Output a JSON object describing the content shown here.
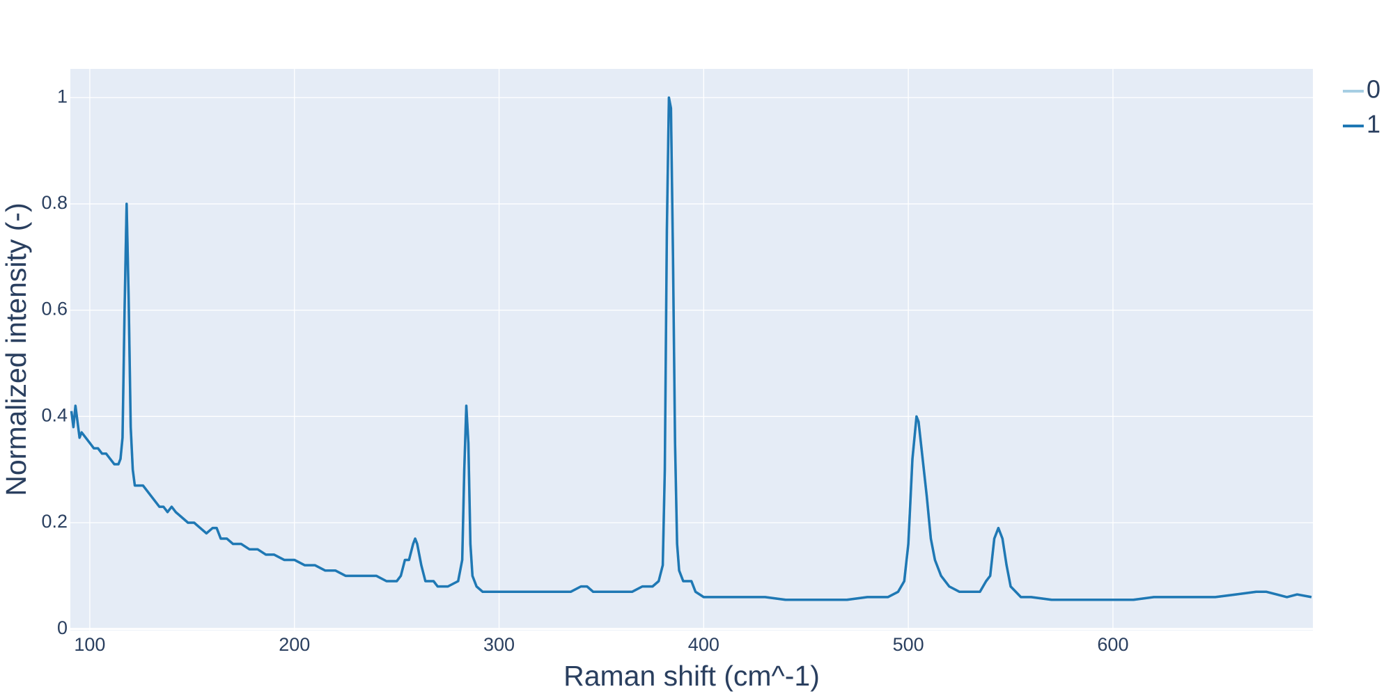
{
  "chart_data": {
    "type": "line",
    "x_label": "Raman shift (cm^-1)",
    "y_label": "Normalized intensity (-)",
    "x": [
      91,
      92,
      93,
      94,
      95,
      96,
      98,
      100,
      102,
      104,
      106,
      108,
      110,
      112,
      114,
      115,
      116,
      117,
      118,
      119,
      120,
      121,
      122,
      124,
      126,
      128,
      130,
      132,
      134,
      136,
      138,
      140,
      142,
      145,
      148,
      151,
      154,
      157,
      160,
      162,
      164,
      167,
      170,
      174,
      178,
      182,
      186,
      190,
      195,
      200,
      205,
      210,
      215,
      220,
      225,
      230,
      235,
      240,
      245,
      250,
      252,
      254,
      256,
      258,
      259,
      260,
      262,
      264,
      266,
      268,
      270,
      275,
      280,
      282,
      283,
      284,
      285,
      286,
      287,
      289,
      292,
      296,
      300,
      305,
      310,
      315,
      320,
      325,
      330,
      335,
      340,
      343,
      346,
      350,
      355,
      360,
      365,
      370,
      375,
      378,
      380,
      381,
      382,
      383,
      384,
      385,
      386,
      387,
      388,
      390,
      392,
      394,
      396,
      400,
      410,
      420,
      430,
      440,
      450,
      460,
      470,
      480,
      490,
      495,
      498,
      500,
      502,
      504,
      505,
      507,
      509,
      511,
      513,
      516,
      520,
      525,
      530,
      535,
      538,
      540,
      542,
      544,
      546,
      548,
      550,
      555,
      560,
      570,
      580,
      590,
      600,
      610,
      620,
      630,
      640,
      650,
      660,
      670,
      675,
      680,
      685,
      690,
      697
    ],
    "series": [
      {
        "name": "0",
        "color": "#a6cee3",
        "values": [
          0.41,
          0.38,
          0.42,
          0.39,
          0.36,
          0.37,
          0.36,
          0.35,
          0.34,
          0.34,
          0.33,
          0.33,
          0.32,
          0.31,
          0.31,
          0.32,
          0.36,
          0.6,
          0.8,
          0.62,
          0.38,
          0.3,
          0.27,
          0.27,
          0.27,
          0.26,
          0.25,
          0.24,
          0.23,
          0.23,
          0.22,
          0.23,
          0.22,
          0.21,
          0.2,
          0.2,
          0.19,
          0.18,
          0.19,
          0.19,
          0.17,
          0.17,
          0.16,
          0.16,
          0.15,
          0.15,
          0.14,
          0.14,
          0.13,
          0.13,
          0.12,
          0.12,
          0.11,
          0.11,
          0.1,
          0.1,
          0.1,
          0.1,
          0.09,
          0.09,
          0.1,
          0.13,
          0.13,
          0.16,
          0.17,
          0.16,
          0.12,
          0.09,
          0.09,
          0.09,
          0.08,
          0.08,
          0.09,
          0.13,
          0.3,
          0.42,
          0.35,
          0.16,
          0.1,
          0.08,
          0.07,
          0.07,
          0.07,
          0.07,
          0.07,
          0.07,
          0.07,
          0.07,
          0.07,
          0.07,
          0.08,
          0.08,
          0.07,
          0.07,
          0.07,
          0.07,
          0.07,
          0.08,
          0.08,
          0.09,
          0.12,
          0.3,
          0.75,
          1.0,
          0.98,
          0.7,
          0.35,
          0.16,
          0.11,
          0.09,
          0.09,
          0.09,
          0.07,
          0.06,
          0.06,
          0.06,
          0.06,
          0.055,
          0.055,
          0.055,
          0.055,
          0.06,
          0.06,
          0.07,
          0.09,
          0.16,
          0.32,
          0.4,
          0.39,
          0.32,
          0.25,
          0.17,
          0.13,
          0.1,
          0.08,
          0.07,
          0.07,
          0.07,
          0.09,
          0.1,
          0.17,
          0.19,
          0.17,
          0.12,
          0.08,
          0.06,
          0.06,
          0.055,
          0.055,
          0.055,
          0.055,
          0.055,
          0.06,
          0.06,
          0.06,
          0.06,
          0.065,
          0.07,
          0.07,
          0.065,
          0.06,
          0.065,
          0.06
        ]
      },
      {
        "name": "1",
        "color": "#1f78b4",
        "values": [
          0.41,
          0.38,
          0.42,
          0.39,
          0.36,
          0.37,
          0.36,
          0.35,
          0.34,
          0.34,
          0.33,
          0.33,
          0.32,
          0.31,
          0.31,
          0.32,
          0.36,
          0.6,
          0.8,
          0.62,
          0.38,
          0.3,
          0.27,
          0.27,
          0.27,
          0.26,
          0.25,
          0.24,
          0.23,
          0.23,
          0.22,
          0.23,
          0.22,
          0.21,
          0.2,
          0.2,
          0.19,
          0.18,
          0.19,
          0.19,
          0.17,
          0.17,
          0.16,
          0.16,
          0.15,
          0.15,
          0.14,
          0.14,
          0.13,
          0.13,
          0.12,
          0.12,
          0.11,
          0.11,
          0.1,
          0.1,
          0.1,
          0.1,
          0.09,
          0.09,
          0.1,
          0.13,
          0.13,
          0.16,
          0.17,
          0.16,
          0.12,
          0.09,
          0.09,
          0.09,
          0.08,
          0.08,
          0.09,
          0.13,
          0.3,
          0.42,
          0.35,
          0.16,
          0.1,
          0.08,
          0.07,
          0.07,
          0.07,
          0.07,
          0.07,
          0.07,
          0.07,
          0.07,
          0.07,
          0.07,
          0.08,
          0.08,
          0.07,
          0.07,
          0.07,
          0.07,
          0.07,
          0.08,
          0.08,
          0.09,
          0.12,
          0.3,
          0.75,
          1.0,
          0.98,
          0.7,
          0.35,
          0.16,
          0.11,
          0.09,
          0.09,
          0.09,
          0.07,
          0.06,
          0.06,
          0.06,
          0.06,
          0.055,
          0.055,
          0.055,
          0.055,
          0.06,
          0.06,
          0.07,
          0.09,
          0.16,
          0.32,
          0.4,
          0.39,
          0.32,
          0.25,
          0.17,
          0.13,
          0.1,
          0.08,
          0.07,
          0.07,
          0.07,
          0.09,
          0.1,
          0.17,
          0.19,
          0.17,
          0.12,
          0.08,
          0.06,
          0.06,
          0.055,
          0.055,
          0.055,
          0.055,
          0.055,
          0.06,
          0.06,
          0.06,
          0.06,
          0.065,
          0.07,
          0.07,
          0.065,
          0.06,
          0.065,
          0.06
        ]
      }
    ],
    "xlim": [
      90.5,
      697.7
    ],
    "ylim": [
      -0.003,
      1.054
    ],
    "xticks": [
      100,
      200,
      300,
      400,
      500,
      600
    ],
    "yticks": [
      0,
      0.2,
      0.4,
      0.6,
      0.8,
      1
    ],
    "grid": true,
    "legend": "right"
  }
}
